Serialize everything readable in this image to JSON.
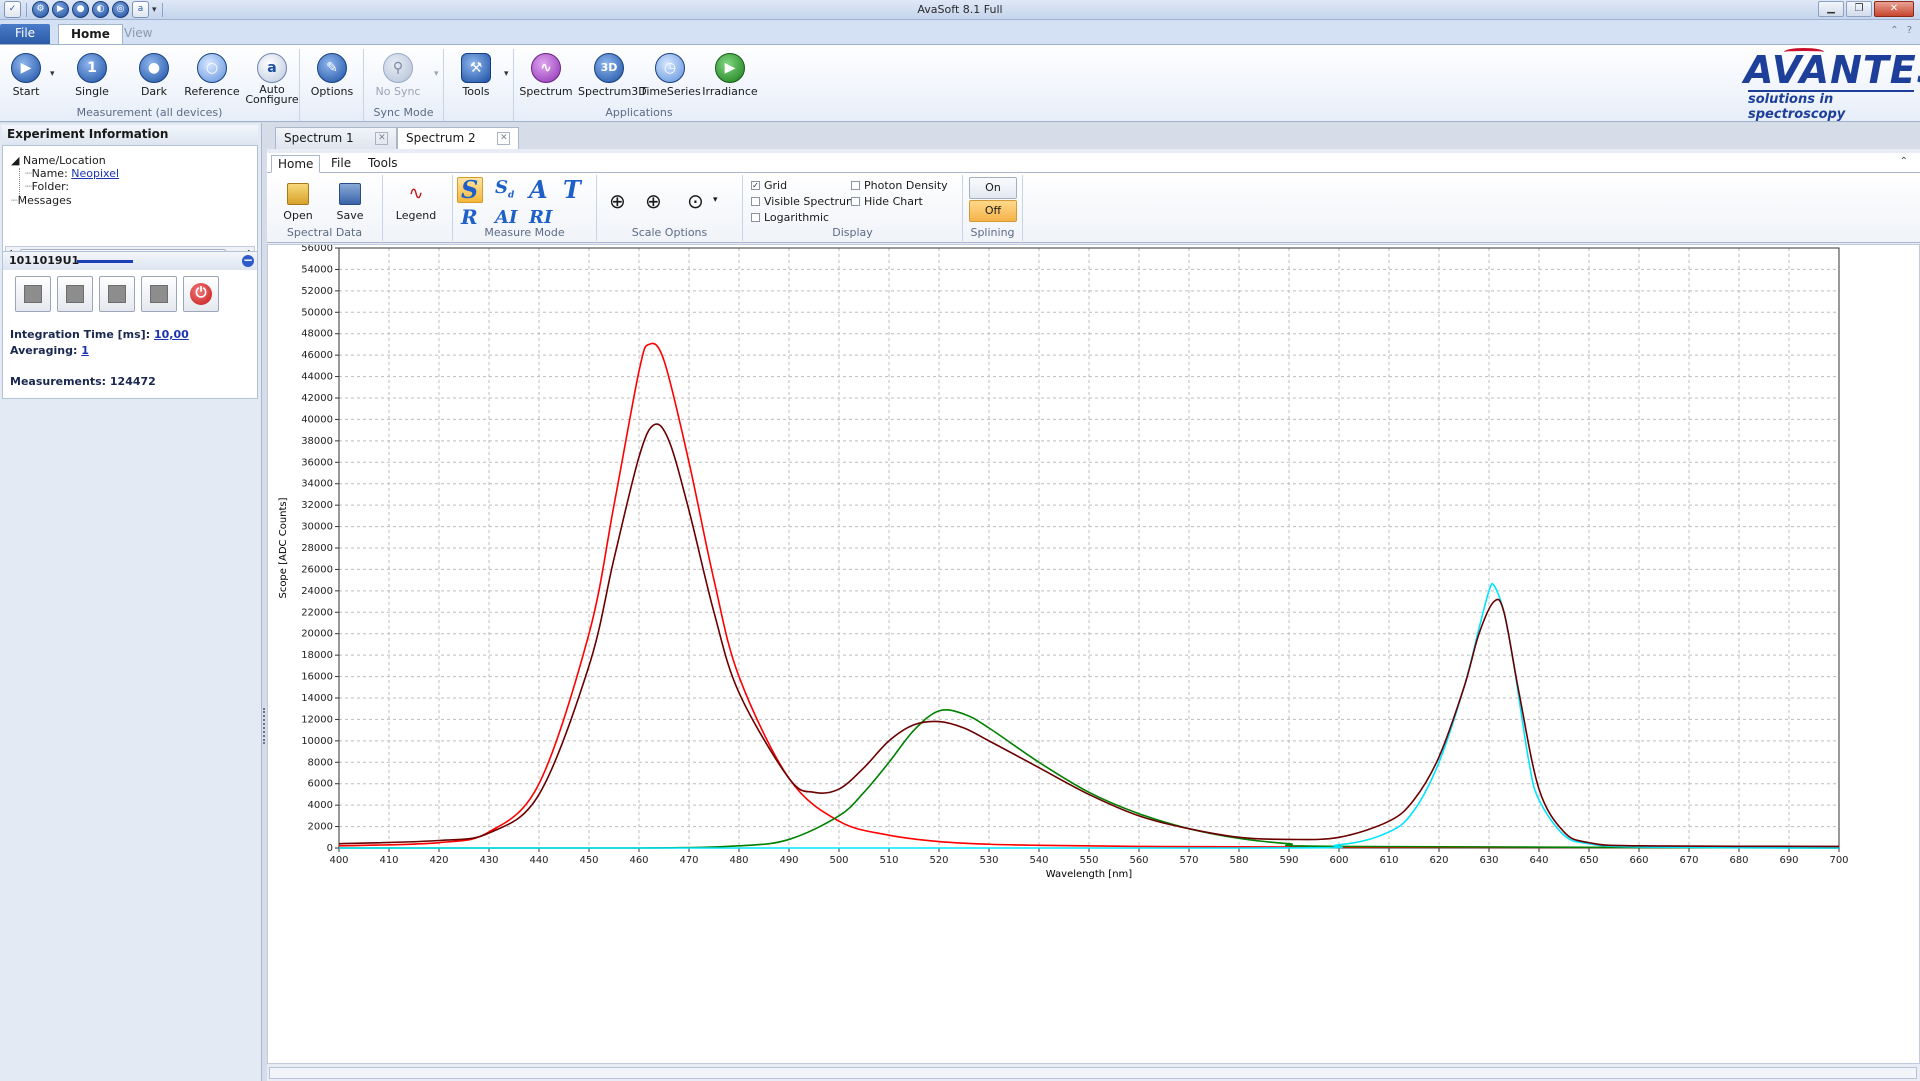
{
  "window": {
    "title": "AvaSoft 8.1 Full"
  },
  "ribbon_tabs": {
    "file": "File",
    "home": "Home",
    "view": "View"
  },
  "ribbon": {
    "measurement_group": "Measurement (all devices)",
    "start": "Start",
    "single": "Single",
    "dark": "Dark",
    "reference": "Reference",
    "auto_configure_1": "Auto",
    "auto_configure_2": "Configure",
    "options_label": "Options",
    "sync_group": "Sync Mode",
    "no_sync": "No Sync",
    "tools": "Tools",
    "applications_group": "Applications",
    "spectrum": "Spectrum",
    "spectrum3d": "Spectrum3D",
    "timeseries": "TimeSeries",
    "irradiance": "Irradiance"
  },
  "logo": {
    "name": "AVANTES",
    "tagline": "solutions in spectroscopy"
  },
  "experiment": {
    "title": "Experiment Information",
    "name_location": "Name/Location",
    "name_label": "Name:",
    "name_value": "Neopixel",
    "folder_label": "Folder:",
    "messages": "Messages"
  },
  "device": {
    "id": "1011019U1",
    "integration_label": "Integration Time  [ms]:",
    "integration_value": "10,00",
    "averaging_label": "Averaging:",
    "averaging_value": "1",
    "measurements_label": "Measurements: 124472"
  },
  "doc_tabs": [
    "Spectrum 1",
    "Spectrum 2"
  ],
  "sub_tabs": [
    "Home",
    "File",
    "Tools"
  ],
  "sub_ribbon": {
    "open": "Open",
    "save": "Save",
    "spectral_group": "Spectral Data",
    "legend": "Legend",
    "measure_group": "Measure Mode",
    "scale_group": "Scale Options",
    "display_group": "Display",
    "grid": "Grid",
    "visible_spectrum": "Visible Spectrum",
    "logarithmic": "Logarithmic",
    "photon_density": "Photon Density",
    "hide_chart": "Hide Chart",
    "splining_group": "Splining",
    "on": "On",
    "off": "Off"
  },
  "chart_data": {
    "type": "line",
    "xlabel": "Wavelength [nm]",
    "ylabel": "Scope [ADC Counts]",
    "xlim": [
      400,
      700
    ],
    "ylim": [
      0,
      56000
    ],
    "xticks": [
      400,
      410,
      420,
      430,
      440,
      450,
      460,
      470,
      480,
      490,
      500,
      510,
      520,
      530,
      540,
      550,
      560,
      570,
      580,
      590,
      600,
      610,
      620,
      630,
      640,
      650,
      660,
      670,
      680,
      690,
      700
    ],
    "yticks": [
      0,
      2000,
      4000,
      6000,
      8000,
      10000,
      12000,
      14000,
      16000,
      18000,
      20000,
      22000,
      24000,
      26000,
      28000,
      30000,
      32000,
      34000,
      36000,
      38000,
      40000,
      42000,
      44000,
      46000,
      48000,
      50000,
      52000,
      54000,
      56000
    ],
    "grid": true,
    "series": [
      {
        "color": "#ff0000",
        "x": [
          400,
          420,
          430,
          440,
          450,
          455,
          460,
          462,
          465,
          470,
          475,
          480,
          490,
          500,
          510,
          520,
          530,
          540,
          560,
          600,
          700
        ],
        "y": [
          200,
          500,
          1500,
          6000,
          20000,
          32000,
          44500,
          47000,
          45500,
          36000,
          25000,
          16000,
          6500,
          2500,
          1200,
          600,
          350,
          250,
          150,
          80,
          50
        ]
      },
      {
        "color": "#008000",
        "x": [
          400,
          460,
          480,
          490,
          500,
          505,
          510,
          515,
          520,
          525,
          530,
          540,
          550,
          560,
          570,
          580,
          590,
          600,
          700
        ],
        "y": [
          0,
          0,
          200,
          800,
          3000,
          5200,
          8000,
          11000,
          12800,
          12500,
          11200,
          8000,
          5200,
          3200,
          1800,
          900,
          400,
          150,
          0
        ]
      },
      {
        "color": "#00e5ff",
        "x": [
          400,
          580,
          600,
          610,
          615,
          620,
          625,
          628,
          630,
          631,
          633,
          635,
          638,
          640,
          645,
          650,
          660,
          700
        ],
        "y": [
          0,
          0,
          300,
          1500,
          3500,
          8000,
          15000,
          20500,
          24000,
          24500,
          22000,
          17000,
          8000,
          4500,
          1200,
          400,
          100,
          0
        ]
      },
      {
        "color": "#6b0000",
        "x": [
          400,
          420,
          430,
          440,
          450,
          455,
          460,
          463,
          466,
          470,
          475,
          480,
          490,
          495,
          500,
          505,
          510,
          515,
          520,
          525,
          530,
          540,
          550,
          560,
          570,
          580,
          590,
          600,
          610,
          615,
          620,
          625,
          628,
          631,
          633,
          636,
          640,
          645,
          650,
          660,
          700
        ],
        "y": [
          400,
          700,
          1400,
          5000,
          17000,
          27000,
          36500,
          39500,
          38000,
          31500,
          22000,
          14500,
          6500,
          5200,
          5500,
          7500,
          10000,
          11500,
          11800,
          11200,
          10000,
          7500,
          5000,
          3000,
          1800,
          1000,
          800,
          1000,
          2500,
          4500,
          8500,
          15000,
          20000,
          23000,
          22000,
          14500,
          5500,
          1500,
          500,
          200,
          150
        ]
      }
    ]
  }
}
